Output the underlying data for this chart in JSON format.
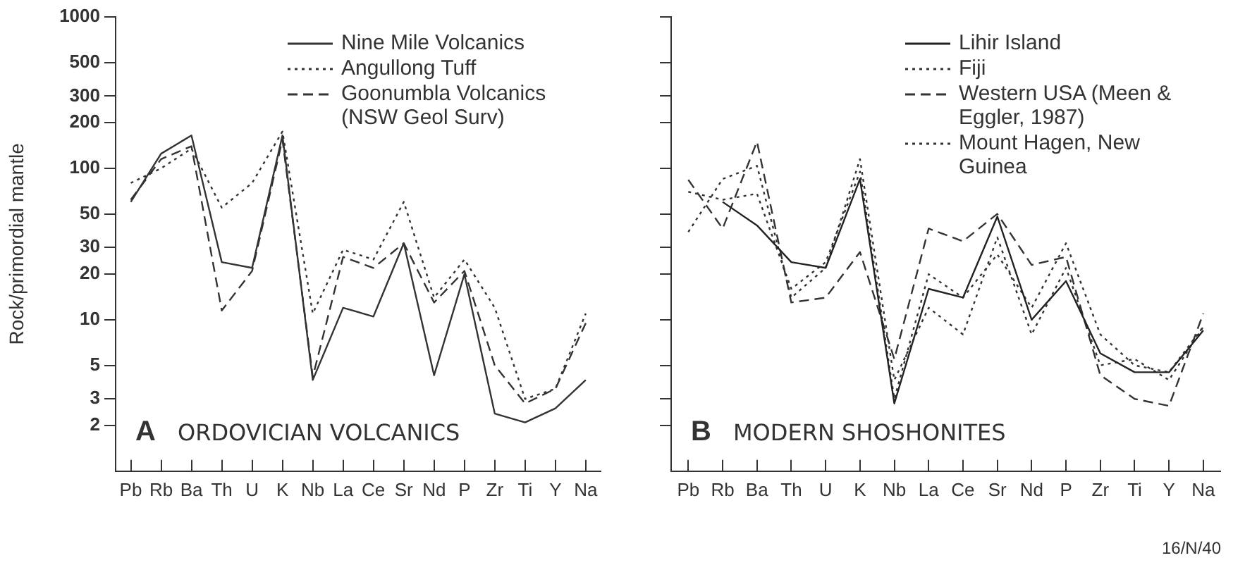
{
  "chart_data": [
    {
      "type": "line",
      "ylabel": "Rock/primordial mantle",
      "categories": [
        "Pb",
        "Rb",
        "Ba",
        "Th",
        "U",
        "K",
        "Nb",
        "La",
        "Ce",
        "Sr",
        "Nd",
        "P",
        "Zr",
        "Ti",
        "Y",
        "Na"
      ],
      "log": "y",
      "ylim": [
        1,
        1000
      ],
      "yticks": [
        2,
        3,
        5,
        10,
        20,
        30,
        50,
        100,
        200,
        300,
        500,
        1000
      ],
      "grid": false,
      "legend": "top right",
      "marker": "none",
      "annotations": [
        "A",
        "ORDOVICIAN VOLCANICS"
      ],
      "series": [
        {
          "name": "Nine Mile Volcanics",
          "color": "#333333",
          "line_style": "solid",
          "values": [
            60,
            125,
            165,
            24,
            22,
            165,
            4,
            12,
            10.5,
            32,
            4.3,
            20,
            2.4,
            2.1,
            2.6,
            4
          ]
        },
        {
          "name": "Angullong Tuff",
          "color": "#333333",
          "line_style": "dotted",
          "values": [
            80,
            100,
            135,
            55,
            80,
            175,
            11,
            29,
            25,
            60,
            14,
            25,
            12,
            3,
            3.5,
            11
          ]
        },
        {
          "name": "Goonumbla Volcanics (NSW Geol Surv)",
          "color": "#333333",
          "line_style": "dashed",
          "values": [
            62,
            115,
            140,
            11.5,
            21,
            155,
            4.2,
            26,
            22,
            32,
            13,
            21,
            5,
            2.8,
            3.5,
            9.5
          ]
        }
      ]
    },
    {
      "type": "line",
      "categories": [
        "Pb",
        "Rb",
        "Ba",
        "Th",
        "U",
        "K",
        "Nb",
        "La",
        "Ce",
        "Sr",
        "Nd",
        "P",
        "Zr",
        "Ti",
        "Y",
        "Na"
      ],
      "log": "y",
      "ylim": [
        1,
        1000
      ],
      "yticks": [
        2,
        3,
        5,
        10,
        20,
        30,
        50,
        100,
        200,
        300,
        500,
        1000
      ],
      "tick_labels": "x",
      "grid": false,
      "legend": "top right",
      "marker": "none",
      "annotations": [
        "B",
        "MODERN SHOSHONITES",
        "16/N/40"
      ],
      "series": [
        {
          "name": "Lihir Island",
          "color": "#222222",
          "line_style": "solid",
          "values": [
            null,
            60,
            42,
            24,
            22,
            85,
            2.8,
            16,
            14,
            48,
            10,
            18,
            6,
            4.5,
            4.5,
            8.5
          ]
        },
        {
          "name": "Fiji",
          "color": "#333333",
          "line_style": "dotted",
          "values": [
            38,
            85,
            104,
            14,
            22,
            115,
            4,
            12,
            8,
            35,
            8,
            22,
            5,
            5.5,
            4,
            9
          ]
        },
        {
          "name": "Western USA (Meen & Eggler, 1987)",
          "color": "#333333",
          "line_style": "dashed",
          "values": [
            84,
            40,
            150,
            13,
            14,
            28,
            5.5,
            40,
            33,
            50,
            23,
            26,
            4.3,
            3,
            2.7,
            11
          ]
        },
        {
          "name": "Mount Hagen, New Guinea",
          "color": "#333333",
          "line_style": "dotted",
          "values": [
            70,
            62,
            68,
            16,
            24,
            95,
            3,
            20,
            14,
            27,
            12,
            32,
            8,
            5,
            4.5,
            9
          ]
        }
      ]
    }
  ]
}
